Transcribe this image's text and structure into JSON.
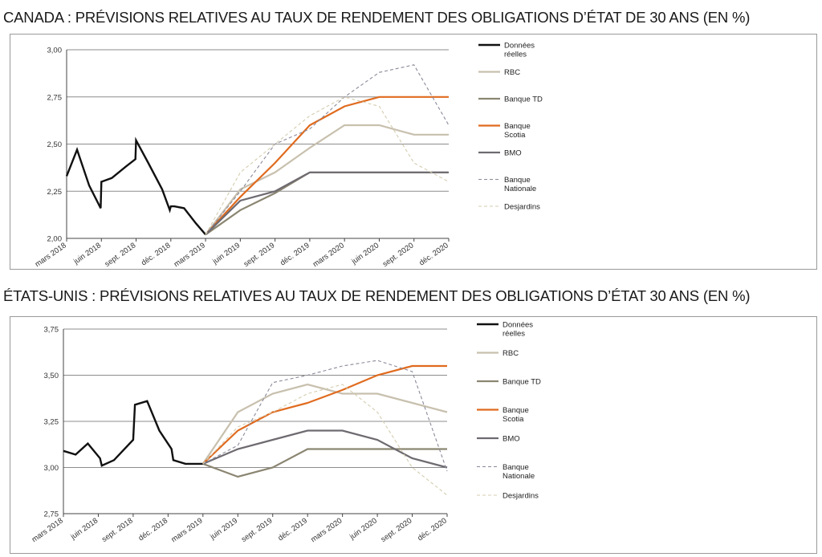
{
  "titles": {
    "canada": "CANADA : PRÉVISIONS RELATIVES AU TAUX DE RENDEMENT DES OBLIGATIONS D’ÉTAT DE 30 ANS (EN %)",
    "usa": "ÉTATS-UNIS : PRÉVISIONS RELATIVES AU TAUX DE RENDEMENT DES OBLIGATIONS D’ÉTAT 30 ANS (EN %)"
  },
  "chart_data": [
    {
      "type": "line",
      "title": "CANADA : PRÉVISIONS RELATIVES AU TAUX DE RENDEMENT DES OBLIGATIONS D’ÉTAT DE 30 ANS (EN %)",
      "xlabel": "",
      "ylabel": "",
      "x_ticks": [
        "mars 2018",
        "juin 2018",
        "sept. 2018",
        "déc. 2018",
        "mars 2019",
        "juin 2019",
        "sept. 2019",
        "déc. 2019",
        "mars 2020",
        "juin 2020",
        "sept. 2020",
        "déc. 2020"
      ],
      "x_range": [
        0,
        11
      ],
      "y_ticks": [
        "2,00",
        "2,25",
        "2,50",
        "2,75",
        "3,00"
      ],
      "ylim": [
        2.0,
        3.0
      ],
      "grid": "horizontal",
      "legend_position": "right",
      "series": [
        {
          "name": "Données réelles",
          "color": "#111111",
          "style": "solid",
          "width": 2.4,
          "x": [
            0,
            0.3,
            0.65,
            0.98,
            1.0,
            1.3,
            1.7,
            1.98,
            2.0,
            2.35,
            2.75,
            2.97,
            3.0,
            3.1,
            3.38,
            3.72,
            4.0
          ],
          "y": [
            2.33,
            2.47,
            2.28,
            2.16,
            2.3,
            2.32,
            2.38,
            2.42,
            2.52,
            2.4,
            2.26,
            2.15,
            2.17,
            2.17,
            2.16,
            2.08,
            2.02
          ]
        },
        {
          "name": "RBC",
          "color": "#c8c0ae",
          "style": "solid",
          "width": 2.2,
          "x": [
            4,
            5,
            6,
            7,
            8,
            9,
            10,
            11
          ],
          "y": [
            2.02,
            2.26,
            2.35,
            2.48,
            2.6,
            2.6,
            2.55,
            2.55
          ]
        },
        {
          "name": "Banque TD",
          "color": "#8b8672",
          "style": "solid",
          "width": 2.2,
          "x": [
            4,
            5,
            6,
            7,
            8,
            9,
            10,
            11
          ],
          "y": [
            2.02,
            2.15,
            2.24,
            2.35,
            2.35,
            2.35,
            2.35,
            2.35
          ]
        },
        {
          "name": "Banque Scotia",
          "color": "#e06b1f",
          "style": "solid",
          "width": 2.2,
          "x": [
            4,
            5,
            6,
            7,
            8,
            9,
            10,
            11
          ],
          "y": [
            2.02,
            2.22,
            2.4,
            2.6,
            2.7,
            2.75,
            2.75,
            2.75
          ]
        },
        {
          "name": "BMO",
          "color": "#6e6a70",
          "style": "solid",
          "width": 2.2,
          "x": [
            4,
            5,
            6,
            7,
            8,
            9,
            10,
            11
          ],
          "y": [
            2.02,
            2.2,
            2.25,
            2.35,
            2.35,
            2.35,
            2.35,
            2.35
          ]
        },
        {
          "name": "Banque Nationale",
          "color": "#8a8a9a",
          "style": "dashed",
          "width": 1.1,
          "x": [
            4,
            5,
            6,
            7,
            8,
            9,
            10,
            11
          ],
          "y": [
            2.02,
            2.25,
            2.5,
            2.58,
            2.75,
            2.88,
            2.92,
            2.6
          ]
        },
        {
          "name": "Desjardins",
          "color": "#d4cdb0",
          "style": "dashed",
          "width": 1.1,
          "x": [
            4,
            5,
            6,
            7,
            8,
            9,
            10,
            11
          ],
          "y": [
            2.02,
            2.35,
            2.5,
            2.65,
            2.75,
            2.7,
            2.4,
            2.3
          ]
        }
      ]
    },
    {
      "type": "line",
      "title": "ÉTATS-UNIS : PRÉVISIONS RELATIVES AU TAUX DE RENDEMENT DES OBLIGATIONS D’ÉTAT 30 ANS (EN %)",
      "xlabel": "",
      "ylabel": "",
      "x_ticks": [
        "mars 2018",
        "juin 2018",
        "sept. 2018",
        "déc. 2018",
        "mars 2019",
        "juin 2019",
        "sept. 2019",
        "déc. 2019",
        "mars 2020",
        "juin 2020",
        "sept. 2020",
        "déc. 2020"
      ],
      "x_range": [
        0,
        11
      ],
      "y_ticks": [
        "2,75",
        "3,00",
        "3,25",
        "3,50",
        "3,75"
      ],
      "ylim": [
        2.75,
        3.75
      ],
      "grid": "horizontal",
      "legend_position": "right",
      "series": [
        {
          "name": "Données réelles",
          "color": "#111111",
          "style": "solid",
          "width": 2.4,
          "x": [
            0,
            0.35,
            0.7,
            1.05,
            1.1,
            1.45,
            2.0,
            2.05,
            2.4,
            2.75,
            3.1,
            3.15,
            3.5,
            4.0
          ],
          "y": [
            3.09,
            3.07,
            3.13,
            3.05,
            3.01,
            3.04,
            3.15,
            3.34,
            3.36,
            3.2,
            3.1,
            3.04,
            3.02,
            3.02
          ]
        },
        {
          "name": "RBC",
          "color": "#c8c0ae",
          "style": "solid",
          "width": 2.2,
          "x": [
            4,
            5,
            6,
            7,
            8,
            9,
            10,
            11
          ],
          "y": [
            3.02,
            3.3,
            3.4,
            3.45,
            3.4,
            3.4,
            3.35,
            3.3
          ]
        },
        {
          "name": "Banque TD",
          "color": "#8b8672",
          "style": "solid",
          "width": 2.2,
          "x": [
            4,
            5,
            6,
            7,
            8,
            9,
            10,
            11
          ],
          "y": [
            3.02,
            2.95,
            3.0,
            3.1,
            3.1,
            3.1,
            3.1,
            3.1
          ]
        },
        {
          "name": "Banque Scotia",
          "color": "#e06b1f",
          "style": "solid",
          "width": 2.2,
          "x": [
            4,
            5,
            6,
            7,
            8,
            9,
            10,
            11
          ],
          "y": [
            3.02,
            3.2,
            3.3,
            3.35,
            3.42,
            3.5,
            3.55,
            3.55
          ]
        },
        {
          "name": "BMO",
          "color": "#6e6a70",
          "style": "solid",
          "width": 2.2,
          "x": [
            4,
            5,
            6,
            7,
            8,
            9,
            10,
            11
          ],
          "y": [
            3.02,
            3.1,
            3.15,
            3.2,
            3.2,
            3.15,
            3.05,
            3.0
          ]
        },
        {
          "name": "Banque Nationale",
          "color": "#8a8a9a",
          "style": "dashed",
          "width": 1.1,
          "x": [
            4,
            5,
            6,
            7,
            8,
            9,
            10,
            11
          ],
          "y": [
            3.02,
            3.12,
            3.46,
            3.5,
            3.55,
            3.58,
            3.52,
            2.98
          ]
        },
        {
          "name": "Desjardins",
          "color": "#d4cdb0",
          "style": "dashed",
          "width": 1.1,
          "x": [
            4,
            5,
            6,
            7,
            8,
            9,
            10,
            11
          ],
          "y": [
            3.02,
            3.22,
            3.3,
            3.4,
            3.45,
            3.3,
            3.0,
            2.85
          ]
        }
      ]
    }
  ]
}
